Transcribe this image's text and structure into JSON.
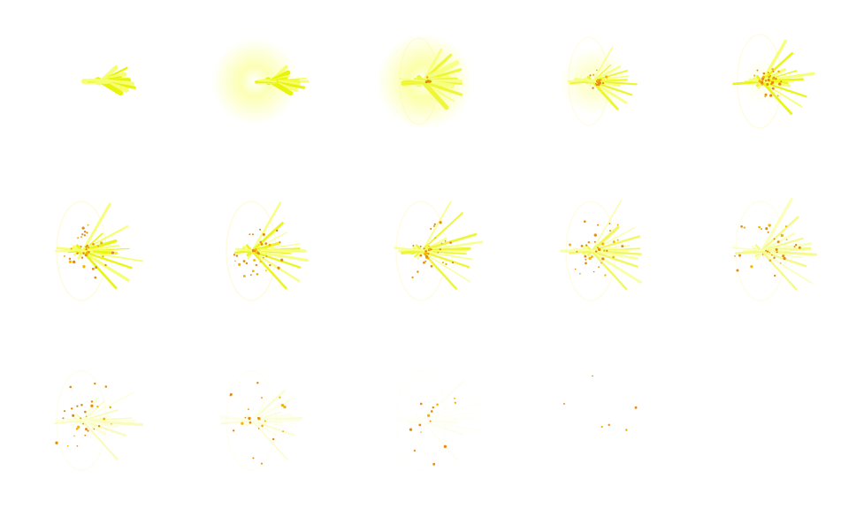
{
  "sprite_sheet": {
    "columns": 5,
    "rows": 3,
    "frame_count": 14,
    "colors": {
      "background": "#ffffff",
      "streak": "#e8f400",
      "streak_core": "#f6ff6a",
      "glow": "#fbff9e",
      "core": "#ffffff",
      "ember": "#e88a10",
      "ember_light": "#f4b400",
      "ring": "#fff4a0"
    },
    "frames": [
      {
        "index": 1,
        "flash": 0.0,
        "spread": 0.35,
        "streak_opacity": 0.95,
        "embers": 0,
        "ember_spread": 0.0,
        "ring_opacity": 0.0
      },
      {
        "index": 2,
        "flash": 0.85,
        "spread": 0.35,
        "streak_opacity": 0.95,
        "embers": 0,
        "ember_spread": 0.0,
        "ring_opacity": 0.0
      },
      {
        "index": 3,
        "flash": 1.0,
        "spread": 0.55,
        "streak_opacity": 0.7,
        "embers": 6,
        "ember_spread": 0.05,
        "ring_opacity": 0.35
      },
      {
        "index": 4,
        "flash": 0.55,
        "spread": 0.6,
        "streak_opacity": 0.8,
        "embers": 22,
        "ember_spread": 0.12,
        "ring_opacity": 0.25
      },
      {
        "index": 5,
        "flash": 0.2,
        "spread": 0.8,
        "streak_opacity": 0.9,
        "embers": 30,
        "ember_spread": 0.2,
        "ring_opacity": 0.3
      },
      {
        "index": 6,
        "flash": 0.0,
        "spread": 1.0,
        "streak_opacity": 0.9,
        "embers": 36,
        "ember_spread": 0.3,
        "ring_opacity": 0.35
      },
      {
        "index": 7,
        "flash": 0.0,
        "spread": 1.0,
        "streak_opacity": 0.85,
        "embers": 36,
        "ember_spread": 0.32,
        "ring_opacity": 0.35
      },
      {
        "index": 8,
        "flash": 0.0,
        "spread": 1.0,
        "streak_opacity": 0.75,
        "embers": 34,
        "ember_spread": 0.35,
        "ring_opacity": 0.3
      },
      {
        "index": 9,
        "flash": 0.0,
        "spread": 1.0,
        "streak_opacity": 0.6,
        "embers": 34,
        "ember_spread": 0.38,
        "ring_opacity": 0.28
      },
      {
        "index": 10,
        "flash": 0.0,
        "spread": 1.0,
        "streak_opacity": 0.45,
        "embers": 32,
        "ember_spread": 0.42,
        "ring_opacity": 0.22
      },
      {
        "index": 11,
        "flash": 0.0,
        "spread": 1.0,
        "streak_opacity": 0.25,
        "embers": 30,
        "ember_spread": 0.45,
        "ring_opacity": 0.18
      },
      {
        "index": 12,
        "flash": 0.0,
        "spread": 1.0,
        "streak_opacity": 0.15,
        "embers": 24,
        "ember_spread": 0.47,
        "ring_opacity": 0.12
      },
      {
        "index": 13,
        "flash": 0.0,
        "spread": 1.0,
        "streak_opacity": 0.05,
        "embers": 14,
        "ember_spread": 0.5,
        "ring_opacity": 0.08
      },
      {
        "index": 14,
        "flash": 0.0,
        "spread": 1.0,
        "streak_opacity": 0.0,
        "embers": 6,
        "ember_spread": 0.52,
        "ring_opacity": 0.04
      }
    ]
  }
}
